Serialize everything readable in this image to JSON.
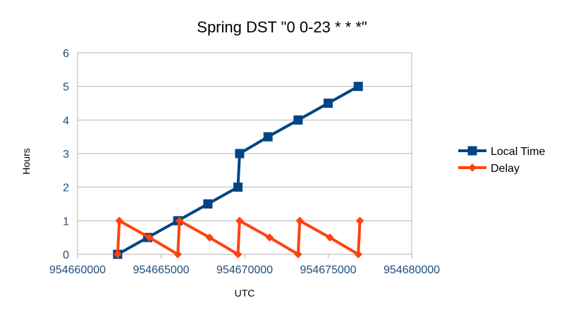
{
  "chart_data": {
    "type": "scatter",
    "title": "Spring DST \"0 0-23 * * *\"",
    "xlabel": "UTC",
    "ylabel": "Hours",
    "xlim": [
      954660000,
      954680000
    ],
    "ylim": [
      0,
      6
    ],
    "x_ticks": [
      954660000,
      954665000,
      954670000,
      954675000,
      954680000
    ],
    "y_ticks": [
      0,
      1,
      2,
      3,
      4,
      5,
      6
    ],
    "x_tick_labels": [
      "954660000",
      "954665000",
      "954670000",
      "954675000",
      "954680000"
    ],
    "y_tick_labels": [
      "0",
      "1",
      "2",
      "3",
      "4",
      "5",
      "6"
    ],
    "grid": "horizontal",
    "legend_position": "right",
    "series": [
      {
        "name": "Local Time",
        "color": "#004586",
        "marker": "square",
        "points": [
          {
            "x": 954662400,
            "y": 0
          },
          {
            "x": 954664200,
            "y": 0.5
          },
          {
            "x": 954666000,
            "y": 1
          },
          {
            "x": 954667800,
            "y": 1.5
          },
          {
            "x": 954669600,
            "y": 2
          },
          {
            "x": 954669700,
            "y": 3
          },
          {
            "x": 954671400,
            "y": 3.5
          },
          {
            "x": 954673200,
            "y": 4
          },
          {
            "x": 954675000,
            "y": 4.5
          },
          {
            "x": 954676800,
            "y": 5
          }
        ]
      },
      {
        "name": "Delay",
        "color": "#ff420e",
        "marker": "diamond",
        "points": [
          {
            "x": 954662400,
            "y": 0
          },
          {
            "x": 954662500,
            "y": 1
          },
          {
            "x": 954664300,
            "y": 0.5
          },
          {
            "x": 954666000,
            "y": 0
          },
          {
            "x": 954666100,
            "y": 1
          },
          {
            "x": 954667900,
            "y": 0.5
          },
          {
            "x": 954669600,
            "y": 0
          },
          {
            "x": 954669700,
            "y": 1
          },
          {
            "x": 954671500,
            "y": 0.5
          },
          {
            "x": 954673200,
            "y": 0
          },
          {
            "x": 954673300,
            "y": 1
          },
          {
            "x": 954675100,
            "y": 0.5
          },
          {
            "x": 954676800,
            "y": 0
          },
          {
            "x": 954676900,
            "y": 1
          }
        ]
      }
    ]
  }
}
